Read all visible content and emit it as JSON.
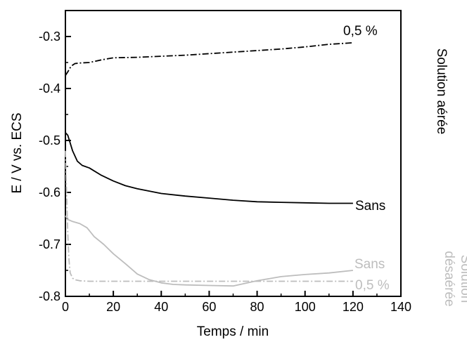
{
  "chart_data": {
    "type": "line",
    "title": "",
    "xlabel": "Temps / min",
    "ylabel": "E / V vs. ECS",
    "xlim": [
      0,
      140
    ],
    "ylim": [
      -0.8,
      -0.25
    ],
    "xticks": [
      0,
      20,
      40,
      60,
      80,
      100,
      120,
      140
    ],
    "yticks": [
      -0.8,
      -0.7,
      -0.6,
      -0.5,
      -0.4,
      -0.3
    ],
    "xtick_labels": [
      "0",
      "20",
      "40",
      "60",
      "80",
      "100",
      "120",
      "140"
    ],
    "ytick_labels": [
      "-0.8",
      "-0.7",
      "-0.6",
      "-0.5",
      "-0.4",
      "-0.3"
    ],
    "grid": false,
    "colors": {
      "aerated": "#000000",
      "deaerated": "#bdbdbd"
    },
    "annotations": {
      "aerated": "Solution aérée",
      "deaerated_line1": "Solution",
      "deaerated_line2": "désaérée"
    },
    "series": [
      {
        "name": "0,5 %",
        "group": "aerated",
        "style": "dashdot",
        "x": [
          0,
          1,
          2,
          3,
          4,
          6,
          10,
          15,
          20,
          30,
          40,
          50,
          60,
          70,
          80,
          90,
          100,
          110,
          120
        ],
        "y": [
          -0.375,
          -0.368,
          -0.36,
          -0.355,
          -0.352,
          -0.351,
          -0.35,
          -0.345,
          -0.341,
          -0.34,
          -0.338,
          -0.336,
          -0.333,
          -0.33,
          -0.327,
          -0.324,
          -0.32,
          -0.315,
          -0.312
        ]
      },
      {
        "name": "Sans",
        "group": "aerated",
        "style": "solid",
        "x": [
          0,
          1,
          2,
          3,
          5,
          7,
          10,
          15,
          20,
          25,
          30,
          40,
          50,
          60,
          70,
          80,
          90,
          100,
          110,
          120
        ],
        "y": [
          -0.485,
          -0.49,
          -0.505,
          -0.52,
          -0.54,
          -0.548,
          -0.553,
          -0.567,
          -0.578,
          -0.587,
          -0.593,
          -0.602,
          -0.607,
          -0.611,
          -0.615,
          -0.618,
          -0.619,
          -0.62,
          -0.621,
          -0.621
        ]
      },
      {
        "name": "Sans",
        "group": "deaerated",
        "style": "solid",
        "x": [
          0,
          1,
          3,
          6,
          9,
          12,
          16,
          20,
          25,
          30,
          35,
          40,
          45,
          50,
          60,
          70,
          80,
          90,
          100,
          110,
          120
        ],
        "y": [
          -0.645,
          -0.652,
          -0.656,
          -0.66,
          -0.668,
          -0.685,
          -0.7,
          -0.718,
          -0.737,
          -0.757,
          -0.768,
          -0.774,
          -0.777,
          -0.778,
          -0.779,
          -0.78,
          -0.77,
          -0.762,
          -0.758,
          -0.755,
          -0.75
        ]
      },
      {
        "name": "0,5 %",
        "group": "deaerated",
        "style": "dashdot",
        "x": [
          0,
          0.5,
          1,
          1.5,
          2,
          3,
          4,
          6,
          10,
          20,
          40,
          60,
          80,
          100,
          120
        ],
        "y": [
          -0.52,
          -0.6,
          -0.68,
          -0.73,
          -0.755,
          -0.765,
          -0.768,
          -0.77,
          -0.771,
          -0.771,
          -0.771,
          -0.771,
          -0.771,
          -0.771,
          -0.771
        ]
      }
    ]
  }
}
